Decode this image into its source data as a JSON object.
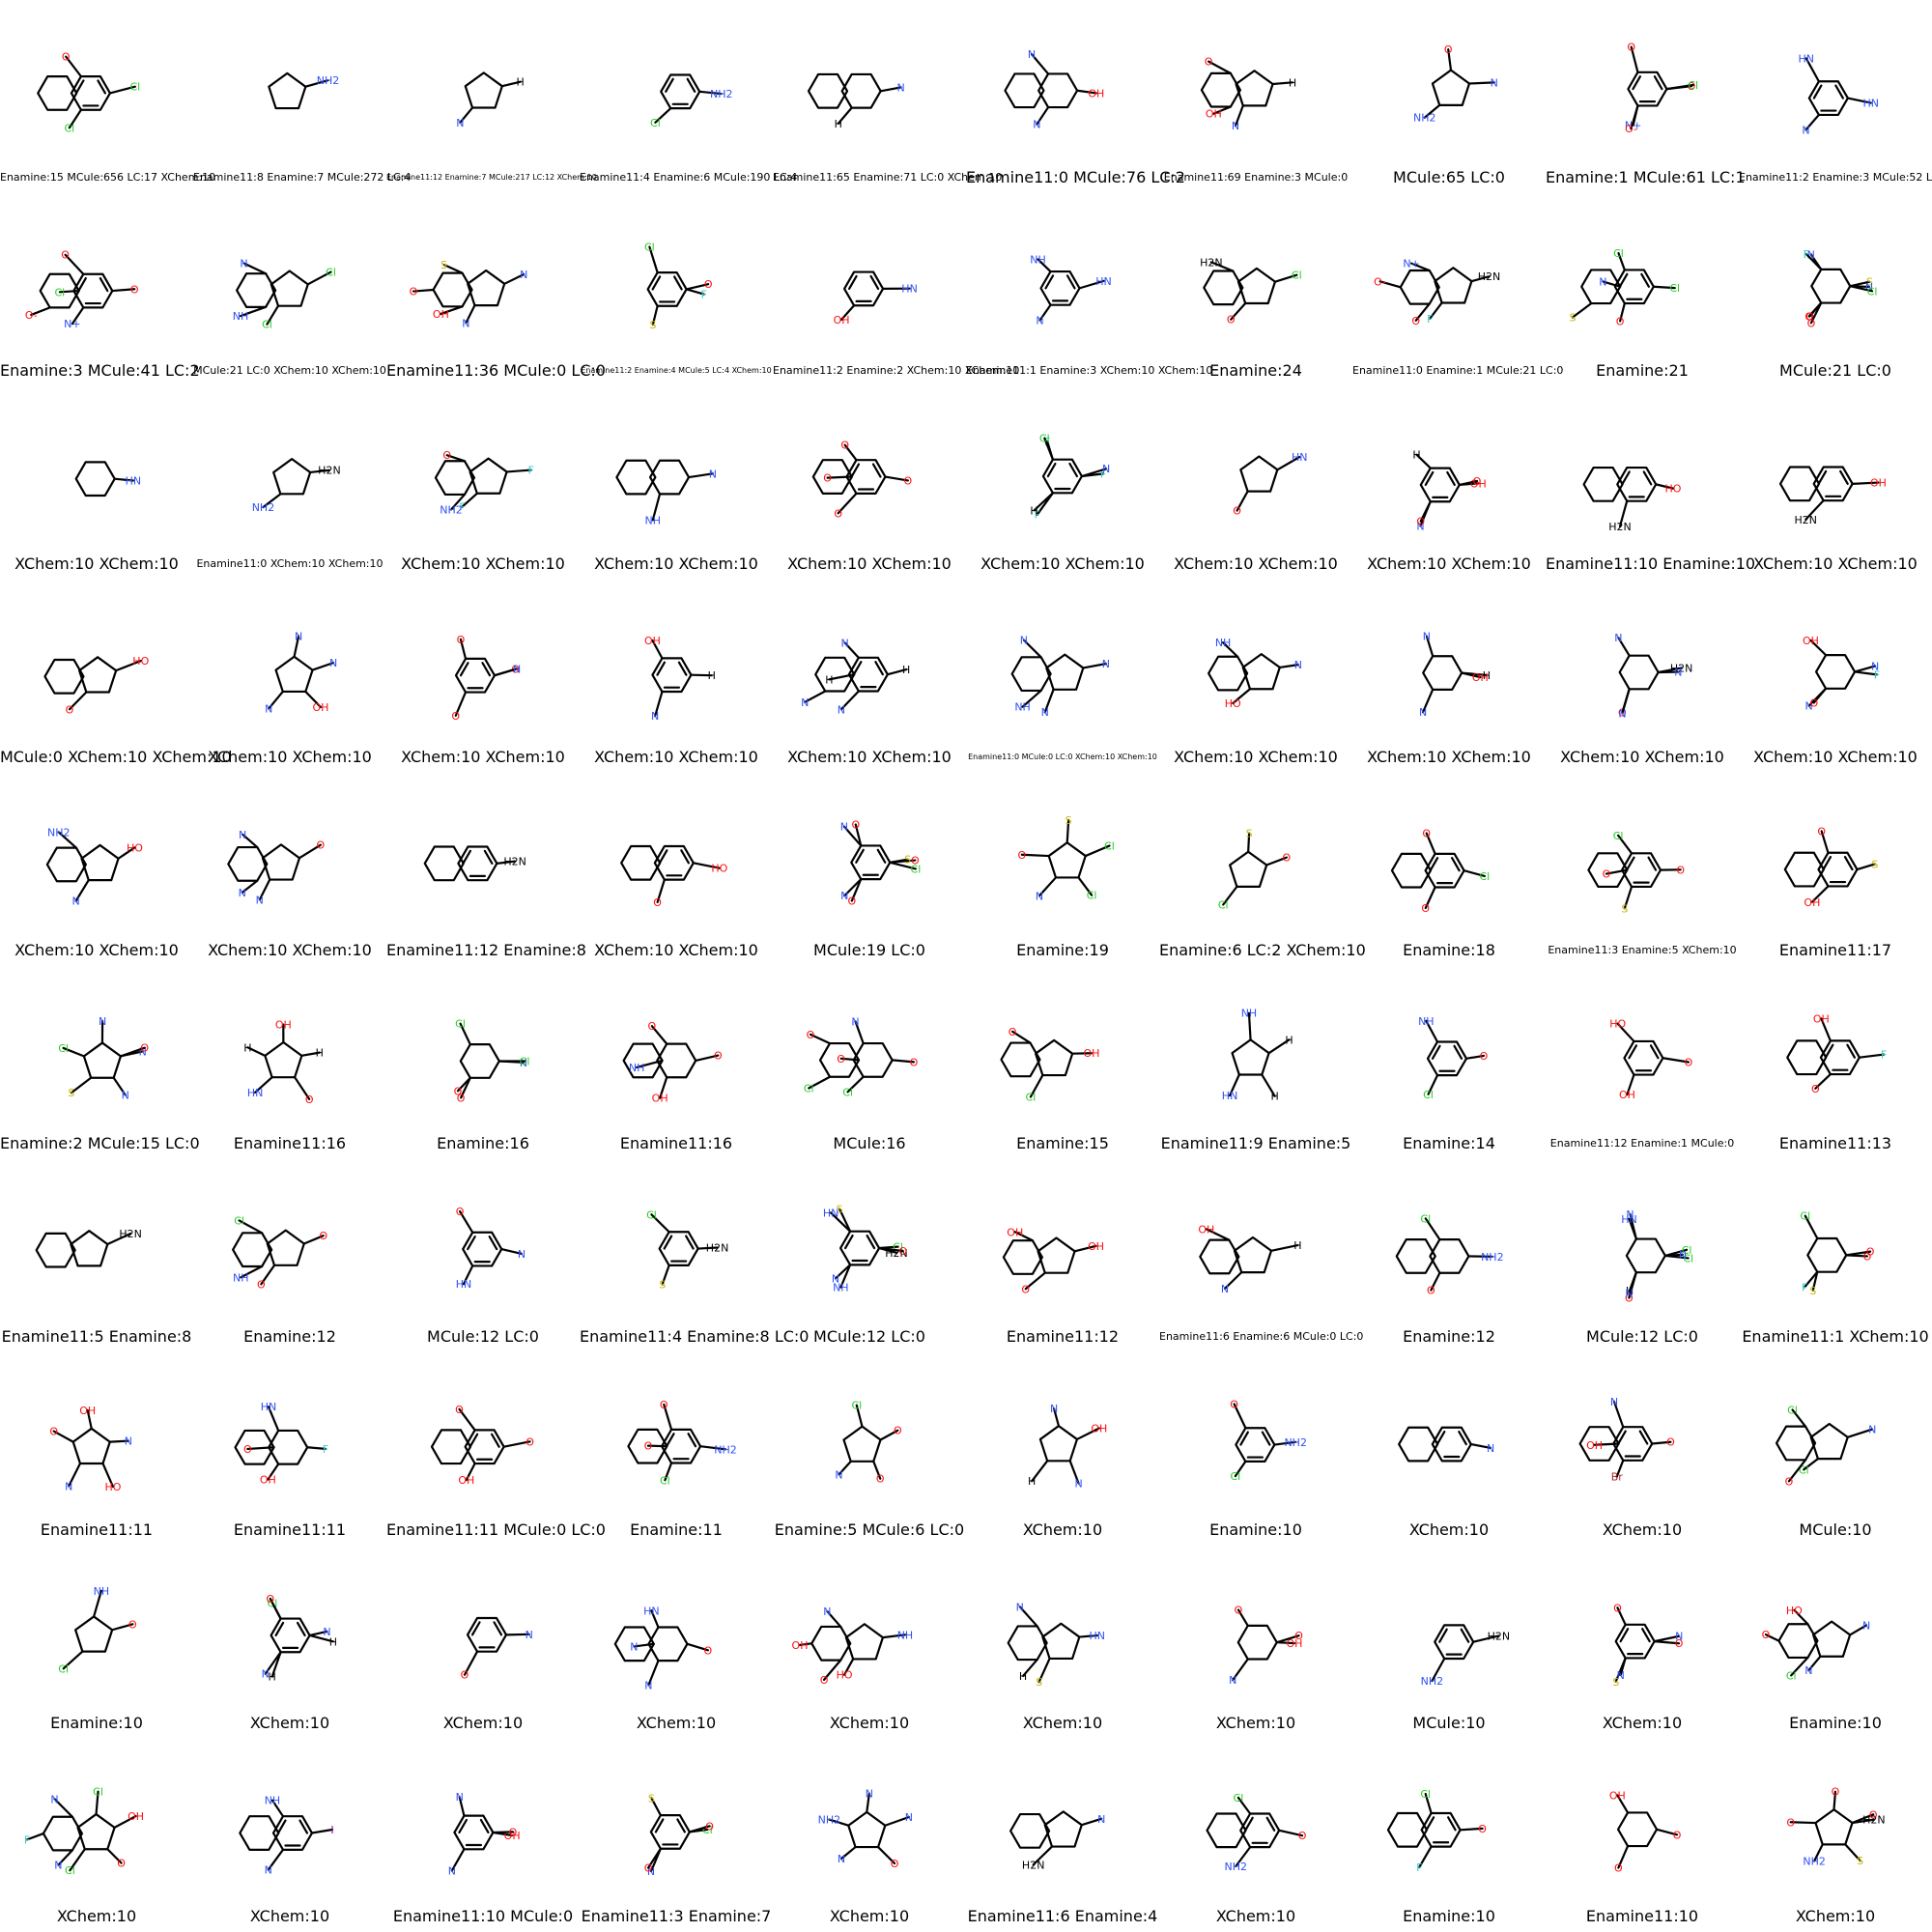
{
  "grid": {
    "rows": 10,
    "cols": 10,
    "cells": [
      {
        "legend": "Enamine:15 MCule:656 LC:17 XChem:10",
        "labels": [
          "Cl",
          "Cl",
          "O"
        ]
      },
      {
        "legend": "Enamine11:8 Enamine:7 MCule:272 LC:4",
        "labels": [
          "NH2"
        ]
      },
      {
        "legend": "Enamine11:12 Enamine:7 MCule:217 LC:12 XChem:10",
        "labels": [
          "H",
          "N"
        ]
      },
      {
        "legend": "Enamine11:4 Enamine:6 MCule:190 LC:4",
        "labels": [
          "NH2",
          "Cl"
        ]
      },
      {
        "legend": "Enamine11:65 Enamine:71 LC:0 XChem:10",
        "labels": [
          "N",
          "H"
        ]
      },
      {
        "legend": "Enamine11:0 MCule:76 LC:2",
        "labels": [
          "OH",
          "N",
          "N"
        ]
      },
      {
        "legend": "Enamine11:69 Enamine:3 MCule:0",
        "labels": [
          "H",
          "N",
          "O",
          "OH"
        ]
      },
      {
        "legend": "MCule:65 LC:0",
        "labels": [
          "N",
          "NH2",
          "O"
        ]
      },
      {
        "legend": "Enamine:1 MCule:61 LC:1",
        "labels": [
          "O",
          "N+",
          "O",
          "Cl",
          "O-"
        ]
      },
      {
        "legend": "Enamine11:2 Enamine:3 MCule:52 LC:1",
        "labels": [
          "HN",
          "N",
          "HN"
        ]
      },
      {
        "legend": "Enamine:3 MCule:41 LC:2",
        "labels": [
          "O",
          "N+",
          "O",
          "Cl",
          "O-"
        ]
      },
      {
        "legend": "MCule:21 LC:0 XChem:10 XChem:10",
        "labels": [
          "Cl",
          "Cl",
          "N",
          "NH"
        ]
      },
      {
        "legend": "Enamine11:36 MCule:0 LC:0",
        "labels": [
          "N",
          "N",
          "S",
          "OH",
          "O"
        ]
      },
      {
        "legend": "Enamine11:2 Enamine:4 MCule:5 LC:4 XChem:10",
        "labels": [
          "F",
          "S",
          "Cl",
          "O"
        ]
      },
      {
        "legend": "Enamine11:2 Enamine:2 XChem:10 XChem:10",
        "labels": [
          "HN",
          "OH"
        ]
      },
      {
        "legend": "Enamine11:1 Enamine:3 XChem:10 XChem:10",
        "labels": [
          "HN",
          "N",
          "NH"
        ]
      },
      {
        "legend": "Enamine:24",
        "labels": [
          "Cl",
          "O",
          "H2N"
        ]
      },
      {
        "legend": "Enamine11:0 Enamine:1 MCule:21 LC:0",
        "labels": [
          "H2N",
          "F",
          "N+",
          "O",
          "O-"
        ]
      },
      {
        "legend": "Enamine:21",
        "labels": [
          "Cl",
          "O",
          "Cl",
          "N",
          "S"
        ]
      },
      {
        "legend": "MCule:21 LC:0",
        "labels": [
          "S",
          "O",
          "N",
          "N",
          "O",
          "F",
          "Cl",
          "O"
        ]
      },
      {
        "legend": "XChem:10 XChem:10",
        "labels": [
          "HN"
        ]
      },
      {
        "legend": "Enamine11:0 XChem:10 XChem:10",
        "labels": [
          "H2N",
          "NH2"
        ]
      },
      {
        "legend": "XChem:10 XChem:10",
        "labels": [
          "F",
          "F",
          "O",
          "NH2"
        ]
      },
      {
        "legend": "XChem:10 XChem:10",
        "labels": [
          "N",
          "NH"
        ]
      },
      {
        "legend": "XChem:10 XChem:10",
        "labels": [
          "O",
          "O",
          "O",
          "O"
        ]
      },
      {
        "legend": "XChem:10 XChem:10",
        "labels": [
          "F",
          "F",
          "F",
          "N",
          "H",
          "Cl"
        ]
      },
      {
        "legend": "XChem:10 XChem:10",
        "labels": [
          "HN",
          "O"
        ]
      },
      {
        "legend": "XChem:10 XChem:10",
        "labels": [
          "OH",
          "N",
          "H",
          "O",
          "O"
        ]
      },
      {
        "legend": "Enamine11:10 Enamine:10",
        "labels": [
          "HO",
          "H2N"
        ]
      },
      {
        "legend": "XChem:10 XChem:10",
        "labels": [
          "OH",
          "H2N"
        ]
      },
      {
        "legend": "MCule:0 XChem:10 XChem:10",
        "labels": [
          "HO",
          "O"
        ]
      },
      {
        "legend": "XChem:10 XChem:10",
        "labels": [
          "N",
          "N",
          "N",
          "OH"
        ]
      },
      {
        "legend": "XChem:10 XChem:10",
        "labels": [
          "O",
          "O",
          "O",
          "N"
        ]
      },
      {
        "legend": "XChem:10 XChem:10",
        "labels": [
          "H",
          "N",
          "OH"
        ]
      },
      {
        "legend": "XChem:10 XChem:10",
        "labels": [
          "H",
          "N",
          "N",
          "H",
          "N"
        ]
      },
      {
        "legend": "Enamine11:0 MCule:0 LC:0 XChem:10 XChem:10",
        "labels": [
          "N",
          "N",
          "N",
          "NH"
        ]
      },
      {
        "legend": "XChem:10 XChem:10",
        "labels": [
          "N",
          "HO",
          "NH"
        ]
      },
      {
        "legend": "XChem:10 XChem:10",
        "labels": [
          "H",
          "N",
          "N",
          "OH"
        ]
      },
      {
        "legend": "XChem:10 XChem:10",
        "labels": [
          "H2N",
          "O",
          "N",
          "N",
          "N"
        ]
      },
      {
        "legend": "XChem:10 XChem:10",
        "labels": [
          "F",
          "N",
          "OH",
          "N",
          "O"
        ]
      },
      {
        "legend": "XChem:10 XChem:10",
        "labels": [
          "HO",
          "N",
          "NH2"
        ]
      },
      {
        "legend": "XChem:10 XChem:10",
        "labels": [
          "O",
          "N",
          "N",
          "N"
        ]
      },
      {
        "legend": "Enamine11:12 Enamine:8",
        "labels": [
          "H2N"
        ]
      },
      {
        "legend": "XChem:10 XChem:10",
        "labels": [
          "HO",
          "O"
        ]
      },
      {
        "legend": "MCule:19 LC:0",
        "labels": [
          "O",
          "N",
          "O",
          "Cl",
          "O",
          "N",
          "S"
        ]
      },
      {
        "legend": "Enamine:19",
        "labels": [
          "Cl",
          "N",
          "S",
          "Cl",
          "O"
        ]
      },
      {
        "legend": "Enamine:6 LC:2 XChem:10",
        "labels": [
          "O",
          "Cl",
          "S"
        ]
      },
      {
        "legend": "Enamine:18",
        "labels": [
          "Cl",
          "O",
          "O"
        ]
      },
      {
        "legend": "Enamine11:3 Enamine:5 XChem:10",
        "labels": [
          "O",
          "S",
          "Cl",
          "O"
        ]
      },
      {
        "legend": "Enamine11:17",
        "labels": [
          "S",
          "OH",
          "O"
        ]
      },
      {
        "legend": "Enamine:2 MCule:15 LC:0",
        "labels": [
          "N",
          "S",
          "N",
          "N",
          "Cl",
          "O"
        ]
      },
      {
        "legend": "Enamine11:16",
        "labels": [
          "H",
          "HN",
          "OH",
          "O",
          "H"
        ]
      },
      {
        "legend": "Enamine:16",
        "labels": [
          "N",
          "O",
          "Cl",
          "Cl",
          "O"
        ]
      },
      {
        "legend": "Enamine11:16",
        "labels": [
          "O",
          "OH",
          "O",
          "NH"
        ]
      },
      {
        "legend": "MCule:16",
        "labels": [
          "O",
          "Cl",
          "N",
          "O",
          "Cl",
          "O"
        ]
      },
      {
        "legend": "Enamine:15",
        "labels": [
          "OH",
          "Cl",
          "O"
        ]
      },
      {
        "legend": "Enamine11:9 Enamine:5",
        "labels": [
          "H",
          "HN",
          "NH",
          "H"
        ]
      },
      {
        "legend": "Enamine:14",
        "labels": [
          "O",
          "Cl",
          "NH"
        ]
      },
      {
        "legend": "Enamine11:12 Enamine:1 MCule:0",
        "labels": [
          "O",
          "OH",
          "HO"
        ]
      },
      {
        "legend": "Enamine11:13",
        "labels": [
          "F",
          "O",
          "OH"
        ]
      },
      {
        "legend": "Enamine11:5 Enamine:8",
        "labels": [
          "H2N"
        ]
      },
      {
        "legend": "Enamine:12",
        "labels": [
          "O",
          "O",
          "Cl",
          "NH"
        ]
      },
      {
        "legend": "MCule:12 LC:0",
        "labels": [
          "N",
          "HN",
          "O"
        ]
      },
      {
        "legend": "Enamine11:4 Enamine:8 LC:0",
        "labels": [
          "H2N",
          "S",
          "Cl"
        ]
      },
      {
        "legend": "MCule:12 LC:0",
        "labels": [
          "H2N",
          "N",
          "S",
          "Cl",
          "NH",
          "HN",
          "O"
        ]
      },
      {
        "legend": "Enamine11:12",
        "labels": [
          "OH",
          "O",
          "OH"
        ]
      },
      {
        "legend": "Enamine11:6 Enamine:6 MCule:0 LC:0",
        "labels": [
          "H",
          "N",
          "OH"
        ]
      },
      {
        "legend": "Enamine:12",
        "labels": [
          "NH2",
          "O",
          "Cl"
        ]
      },
      {
        "legend": "MCule:12 LC:0",
        "labels": [
          "Cl",
          "H",
          "N",
          "Cl",
          "O",
          "HN",
          "N",
          "N"
        ]
      },
      {
        "legend": "Enamine11:1 XChem:10",
        "labels": [
          "O",
          "S",
          "Cl",
          "O",
          "F"
        ]
      },
      {
        "legend": "Enamine11:11",
        "labels": [
          "N",
          "N",
          "OH",
          "HO",
          "O"
        ]
      },
      {
        "legend": "Enamine11:11",
        "labels": [
          "F",
          "OH",
          "HN",
          "O"
        ]
      },
      {
        "legend": "Enamine11:11 MCule:0 LC:0",
        "labels": [
          "O",
          "OH",
          "O"
        ]
      },
      {
        "legend": "Enamine:11",
        "labels": [
          "NH2",
          "Cl",
          "O",
          "O"
        ]
      },
      {
        "legend": "Enamine:5 MCule:6 LC:0",
        "labels": [
          "O",
          "N",
          "Cl",
          "O"
        ]
      },
      {
        "legend": "XChem:10",
        "labels": [
          "OH",
          "H",
          "N",
          "N"
        ]
      },
      {
        "legend": "Enamine:10",
        "labels": [
          "NH2",
          "Cl",
          "O"
        ]
      },
      {
        "legend": "XChem:10",
        "labels": [
          "N"
        ]
      },
      {
        "legend": "XChem:10",
        "labels": [
          "O",
          "Br",
          "N",
          "OH"
        ]
      },
      {
        "legend": "MCule:10",
        "labels": [
          "N",
          "Cl",
          "Cl",
          "O"
        ]
      },
      {
        "legend": "Enamine:10",
        "labels": [
          "O",
          "Cl",
          "NH"
        ]
      },
      {
        "legend": "XChem:10",
        "labels": [
          "H",
          "N",
          "Cl",
          "N",
          "H",
          "O"
        ]
      },
      {
        "legend": "XChem:10",
        "labels": [
          "N",
          "O"
        ]
      },
      {
        "legend": "XChem:10",
        "labels": [
          "O",
          "N",
          "HN",
          "N"
        ]
      },
      {
        "legend": "XChem:10",
        "labels": [
          "NH",
          "HO",
          "N",
          "O",
          "OH"
        ]
      },
      {
        "legend": "XChem:10",
        "labels": [
          "HN",
          "S",
          "N",
          "H"
        ]
      },
      {
        "legend": "XChem:10",
        "labels": [
          "OH",
          "N",
          "O",
          "O"
        ]
      },
      {
        "legend": "MCule:10",
        "labels": [
          "H2N",
          "NH2"
        ]
      },
      {
        "legend": "XChem:10",
        "labels": [
          "O",
          "S",
          "O",
          "N",
          "N"
        ]
      },
      {
        "legend": "Enamine:10",
        "labels": [
          "N",
          "N",
          "HO",
          "Cl",
          "O"
        ]
      },
      {
        "legend": "XChem:10",
        "labels": [
          "OH",
          "Cl",
          "N",
          "N",
          "F",
          "Cl",
          "O"
        ]
      },
      {
        "legend": "XChem:10",
        "labels": [
          "I",
          "N",
          "NH"
        ]
      },
      {
        "legend": "Enamine11:10 MCule:0",
        "labels": [
          "OH",
          "N",
          "N",
          "O"
        ]
      },
      {
        "legend": "Enamine11:3 Enamine:7",
        "labels": [
          "Cl",
          "N",
          "S",
          "O",
          "O"
        ]
      },
      {
        "legend": "XChem:10",
        "labels": [
          "N",
          "N",
          "N",
          "O",
          "NH2"
        ]
      },
      {
        "legend": "Enamine11:6 Enamine:4",
        "labels": [
          "N",
          "H2N"
        ]
      },
      {
        "legend": "XChem:10",
        "labels": [
          "O",
          "NH2",
          "Cl"
        ]
      },
      {
        "legend": "Enamine:10",
        "labels": [
          "O",
          "F",
          "Cl"
        ]
      },
      {
        "legend": "Enamine11:10",
        "labels": [
          "O",
          "O",
          "OH"
        ]
      },
      {
        "legend": "XChem:10",
        "labels": [
          "H2N",
          "NH2",
          "O",
          "S",
          "O",
          "O"
        ]
      }
    ]
  },
  "element_colors": {
    "C": "#000000",
    "H": "#000000",
    "N": "#2f50f8",
    "O": "#ff0d0d",
    "S": "#c8b400",
    "Cl": "#1fd01f",
    "F": "#33cccc",
    "Br": "#a62929",
    "I": "#940094"
  }
}
